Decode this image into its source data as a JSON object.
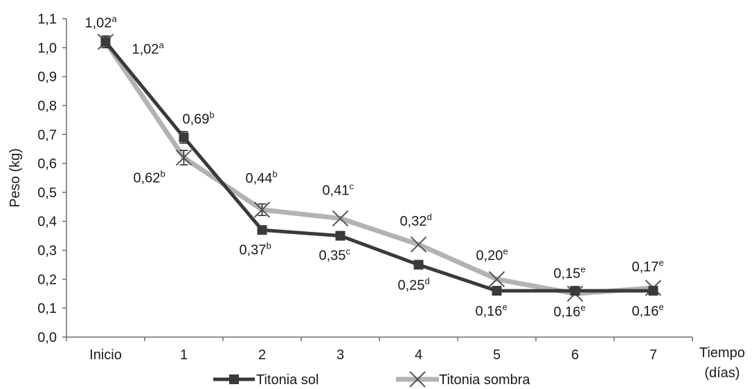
{
  "chart_data": {
    "type": "line",
    "xlabel_lines": [
      "Tiempo",
      "(días)"
    ],
    "ylabel": "Peso (kg)",
    "categories": [
      "Inicio",
      "1",
      "2",
      "3",
      "4",
      "5",
      "6",
      "7"
    ],
    "ylim": [
      0,
      1.1
    ],
    "yticks": [
      "0,0",
      "0,1",
      "0,2",
      "0,3",
      "0,4",
      "0,5",
      "0,6",
      "0,7",
      "0,8",
      "0,9",
      "1,0",
      "1,1"
    ],
    "grid": false,
    "legend_position": "bottom",
    "series": [
      {
        "name": "Titonia sol",
        "color": "#3a3a3a",
        "marker": "square",
        "values": [
          1.02,
          0.69,
          0.37,
          0.35,
          0.25,
          0.16,
          0.16,
          0.16
        ],
        "errors": [
          0.02,
          0.02,
          0.0,
          0.0,
          0.0,
          0.0,
          0.0,
          0.0
        ],
        "labels": [
          {
            "value": "1,02",
            "sup": "a"
          },
          {
            "value": "0,69",
            "sup": "b"
          },
          {
            "value": "0,37",
            "sup": "b"
          },
          {
            "value": "0,35",
            "sup": "c"
          },
          {
            "value": "0,25",
            "sup": "d"
          },
          {
            "value": "0,16",
            "sup": "e"
          },
          {
            "value": "0,16",
            "sup": "e"
          },
          {
            "value": "0,16",
            "sup": "e"
          }
        ]
      },
      {
        "name": "Titonia sombra",
        "color": "#b3b3b3",
        "marker": "x",
        "values": [
          1.02,
          0.62,
          0.44,
          0.41,
          0.32,
          0.2,
          0.15,
          0.17
        ],
        "errors": [
          0.02,
          0.025,
          0.02,
          0.0,
          0.0,
          0.0,
          0.0,
          0.0
        ],
        "labels": [
          {
            "value": "1,02",
            "sup": "a"
          },
          {
            "value": "0,62",
            "sup": "b"
          },
          {
            "value": "0,44",
            "sup": "b"
          },
          {
            "value": "0,41",
            "sup": "c"
          },
          {
            "value": "0,32",
            "sup": "d"
          },
          {
            "value": "0,20",
            "sup": "e"
          },
          {
            "value": "0,15",
            "sup": "e"
          },
          {
            "value": "0,17",
            "sup": "e"
          }
        ]
      }
    ]
  }
}
